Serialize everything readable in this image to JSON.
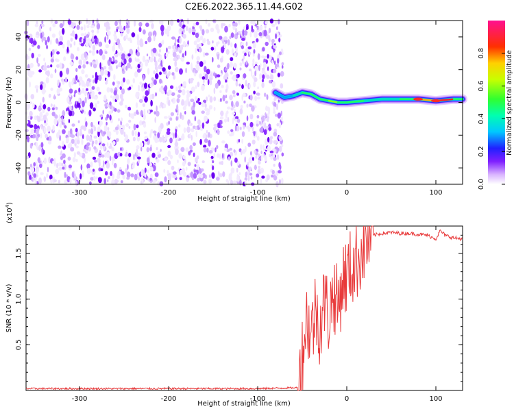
{
  "title": "C2E6.2022.365.11.44.G02",
  "chart_data": [
    {
      "type": "heatmap",
      "title": "C2E6.2022.365.11.44.G02",
      "xlabel": "Height of straight line (km)",
      "ylabel": "Frequency (Hz)",
      "xlim": [
        -360,
        130
      ],
      "ylim": [
        -50,
        50
      ],
      "x_ticks": [
        -300,
        -200,
        -100,
        0,
        100
      ],
      "y_ticks": [
        -40,
        -20,
        0,
        20,
        40
      ],
      "colorbar": {
        "label": "Normalized spectral amplitude",
        "range": [
          0,
          1
        ],
        "ticks": [
          0.0,
          0.2,
          0.4,
          0.6,
          0.8
        ]
      },
      "noise_region": {
        "x_start": -360,
        "x_end": -78,
        "freq_range": [
          -50,
          50
        ]
      },
      "signal_trace": {
        "x": [
          -80,
          -70,
          -60,
          -50,
          -40,
          -30,
          -20,
          -10,
          0,
          20,
          40,
          60,
          80,
          100,
          120,
          130
        ],
        "freq": [
          6,
          3,
          4,
          6,
          5,
          2,
          1,
          0,
          0,
          1,
          2,
          2,
          2,
          1,
          2,
          2
        ],
        "amplitude": [
          0.3,
          0.4,
          0.5,
          0.55,
          0.55,
          0.6,
          0.65,
          0.6,
          0.55,
          0.5,
          0.5,
          0.55,
          0.85,
          0.95,
          0.6,
          0.55
        ]
      },
      "grid": false
    },
    {
      "type": "line",
      "xlabel": "Height of straight line (km)",
      "ylabel": "SNR (10 * v/v)",
      "y_multiplier": "(x10",
      "y_multiplier_exp": "4",
      "y_multiplier_close": ")",
      "xlim": [
        -360,
        130
      ],
      "ylim": [
        0,
        1.8
      ],
      "x_ticks": [
        -300,
        -200,
        -100,
        0,
        100
      ],
      "y_ticks": [
        0.5,
        1.0,
        1.5
      ],
      "series": [
        {
          "color": "#e8393a",
          "x": [
            -360,
            -300,
            -200,
            -100,
            -55,
            -50,
            -45,
            -40,
            -35,
            -30,
            -25,
            -20,
            -15,
            -10,
            -5,
            0,
            5,
            10,
            15,
            20,
            25,
            30,
            40,
            50,
            60,
            70,
            80,
            90,
            100,
            105,
            110,
            120,
            130
          ],
          "y": [
            0.02,
            0.02,
            0.02,
            0.02,
            0.03,
            0.4,
            0.8,
            0.6,
            0.9,
            0.7,
            1.0,
            0.8,
            1.1,
            0.9,
            1.2,
            1.25,
            1.35,
            1.4,
            1.5,
            1.6,
            1.65,
            1.7,
            1.72,
            1.73,
            1.72,
            1.72,
            1.71,
            1.7,
            1.66,
            1.75,
            1.7,
            1.67,
            1.66
          ]
        }
      ],
      "grid": false
    }
  ]
}
